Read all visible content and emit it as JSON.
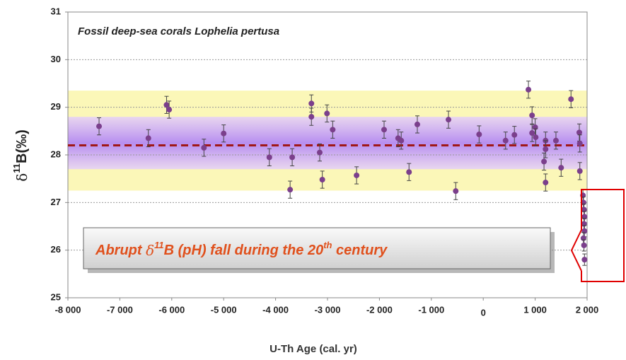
{
  "chart_data": {
    "type": "scatter",
    "title": "Fossil deep-sea corals Lophelia pertusa",
    "xlabel": "U-Th Age (cal. yr)",
    "ylabel": [
      "δ",
      "11",
      "B(‰)"
    ],
    "annotation": [
      "Abrupt ",
      "δ",
      "11",
      "B  (pH)  fall during the 20",
      "th",
      " century"
    ],
    "xlim": [
      -8000,
      2000
    ],
    "ylim": [
      25,
      31
    ],
    "xticks": [
      {
        "value": -8000,
        "label": "-8 000"
      },
      {
        "value": -7000,
        "label": "-7 000"
      },
      {
        "value": -6000,
        "label": "-6 000"
      },
      {
        "value": -5000,
        "label": "-5 000"
      },
      {
        "value": -4000,
        "label": "-4 000"
      },
      {
        "value": -3000,
        "label": "-3 000"
      },
      {
        "value": -2000,
        "label": "-2 000"
      },
      {
        "value": -1000,
        "label": "-1 000"
      },
      0,
      {
        "value": 1000,
        "label": "1 000"
      },
      {
        "value": 2000,
        "label": "2 000"
      }
    ],
    "yticks": [
      25,
      26,
      27,
      28,
      29,
      30,
      31
    ],
    "grid": true,
    "band_outer": [
      27.25,
      29.35
    ],
    "band_inner": [
      27.7,
      28.8
    ],
    "mean": 28.2,
    "series": [
      {
        "color": "#7b3f8c",
        "x": [
          -7400,
          -6450,
          -6100,
          -6050,
          -5380,
          -5000,
          -4120,
          -3680,
          -3720,
          -3310,
          -3310,
          -3150,
          -3100,
          -3010,
          -2900,
          -2440,
          -1910,
          -1640,
          -1580,
          -1430,
          -1270,
          -670,
          -530,
          -80,
          430,
          600,
          870,
          940,
          940,
          1000,
          1010,
          1200,
          1200,
          1170,
          1200,
          1400,
          1500,
          1690,
          1850,
          1860,
          1860,
          1920,
          1930,
          1940,
          1950,
          1940,
          1950,
          1930,
          1940,
          1950
        ],
        "values": [
          28.6,
          28.35,
          29.05,
          28.95,
          28.15,
          28.45,
          27.95,
          27.95,
          27.27,
          29.08,
          28.8,
          28.05,
          27.48,
          28.87,
          28.53,
          27.57,
          28.53,
          28.35,
          28.3,
          27.64,
          28.64,
          28.74,
          27.24,
          28.43,
          28.3,
          28.42,
          29.37,
          28.83,
          28.46,
          28.58,
          28.37,
          28.3,
          28.12,
          27.86,
          27.42,
          28.3,
          27.73,
          29.17,
          28.47,
          28.24,
          27.66,
          27.15,
          27.0,
          26.85,
          26.7,
          26.55,
          26.4,
          26.25,
          26.1,
          25.8
        ],
        "errors": [
          0.18,
          0.18,
          0.18,
          0.18,
          0.18,
          0.18,
          0.18,
          0.18,
          0.18,
          0.18,
          0.18,
          0.18,
          0.18,
          0.18,
          0.18,
          0.18,
          0.18,
          0.18,
          0.18,
          0.18,
          0.18,
          0.18,
          0.18,
          0.18,
          0.18,
          0.18,
          0.18,
          0.18,
          0.18,
          0.18,
          0.18,
          0.18,
          0.18,
          0.18,
          0.18,
          0.18,
          0.18,
          0.18,
          0.18,
          0.18,
          0.18,
          0.12,
          0.12,
          0.12,
          0.12,
          0.12,
          0.12,
          0.12,
          0.12,
          0.12
        ]
      }
    ]
  }
}
